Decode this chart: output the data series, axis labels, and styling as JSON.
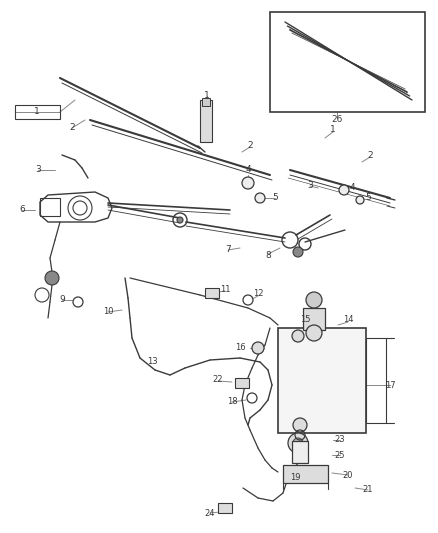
{
  "bg_color": "#ffffff",
  "fig_width": 4.38,
  "fig_height": 5.33,
  "dpi": 100,
  "line_color": "#3a3a3a",
  "text_color": "#3a3a3a",
  "label_line_color": "#888888"
}
